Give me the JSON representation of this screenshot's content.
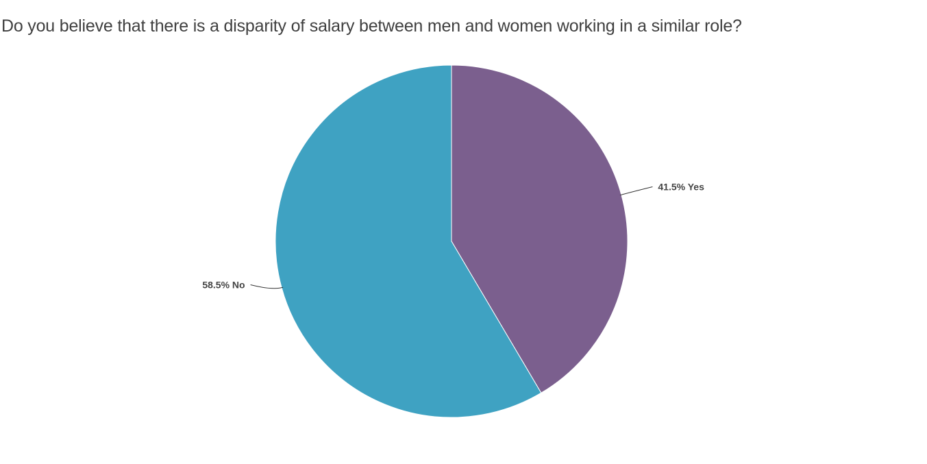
{
  "chart_data": {
    "type": "pie",
    "title": "Do you believe that there is a disparity of salary between men and women working in a similar role?",
    "slices": [
      {
        "label": "Yes",
        "value": 41.5,
        "display": "41.5% Yes",
        "color": "#7b5f8e"
      },
      {
        "label": "No",
        "value": 58.5,
        "display": "58.5% No",
        "color": "#3fa2c2"
      }
    ],
    "start": "top",
    "direction": "clockwise",
    "legend": "none"
  }
}
